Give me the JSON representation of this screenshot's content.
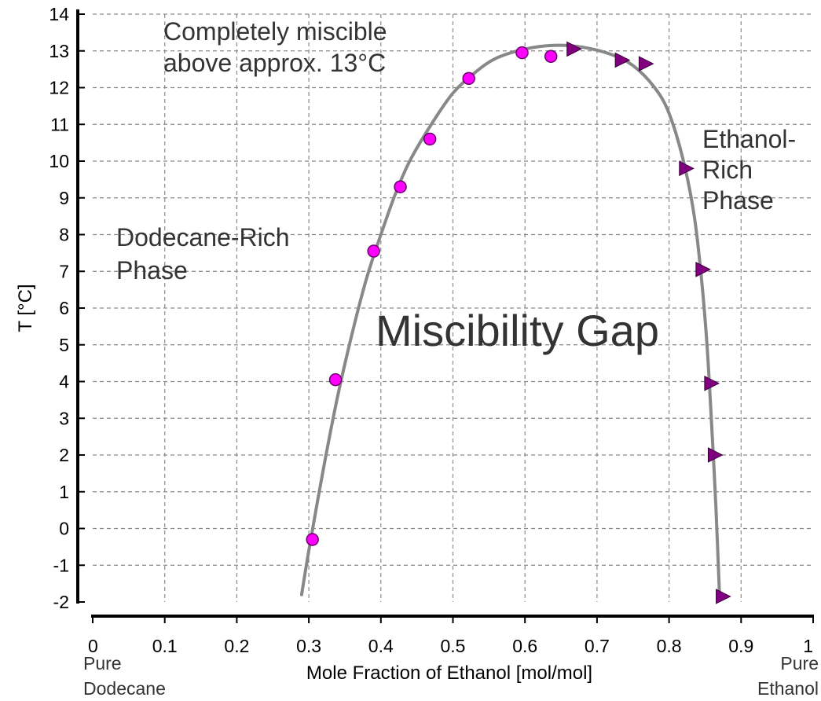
{
  "chart_data": {
    "type": "scatter",
    "title": "",
    "xlabel": "Mole Fraction of Ethanol [mol/mol]",
    "ylabel": "T [°C]",
    "xlim": [
      0,
      1
    ],
    "ylim": [
      -2,
      14
    ],
    "x_ticks": [
      0,
      0.1,
      0.2,
      0.3,
      0.4,
      0.5,
      0.6,
      0.7,
      0.8,
      0.9,
      1
    ],
    "x_tick_labels": [
      "0",
      "0.1",
      "0.2",
      "0.3",
      "0.4",
      "0.5",
      "0.6",
      "0.7",
      "0.8",
      "0.9",
      "1"
    ],
    "y_ticks": [
      -2,
      -1,
      0,
      1,
      2,
      3,
      4,
      5,
      6,
      7,
      8,
      9,
      10,
      11,
      12,
      13,
      14
    ],
    "y_tick_labels": [
      "-2",
      "-1",
      "0",
      "1",
      "2",
      "3",
      "4",
      "5",
      "6",
      "7",
      "8",
      "9",
      "10",
      "11",
      "12",
      "13",
      "14"
    ],
    "grid": true,
    "x_end_labels": {
      "left": [
        "Pure",
        "Dodecane"
      ],
      "right": [
        "Pure",
        "Ethanol"
      ]
    },
    "annotations": {
      "miscible": [
        "Completely miscible",
        "above approx. 13°C"
      ],
      "dodecane_phase": [
        "Dodecane-Rich",
        "Phase"
      ],
      "ethanol_phase": [
        "Ethanol-",
        "Rich",
        "Phase"
      ],
      "gap": "Miscibility Gap"
    },
    "colors": {
      "circle_fill": "#ff00ff",
      "triangle_fill": "#800080",
      "curve": "#888888"
    },
    "series": [
      {
        "marker": "circle",
        "x": [
          0.305,
          0.337,
          0.39,
          0.427,
          0.468,
          0.522,
          0.596,
          0.636
        ],
        "y": [
          -0.3,
          4.05,
          7.55,
          9.3,
          10.6,
          12.25,
          12.95,
          12.85
        ]
      },
      {
        "marker": "triangle",
        "x": [
          0.666,
          0.733,
          0.766,
          0.822,
          0.845,
          0.857,
          0.862,
          0.873
        ],
        "y": [
          13.05,
          12.75,
          12.65,
          9.8,
          7.05,
          3.95,
          2.0,
          -1.85
        ]
      },
      {
        "marker": "line",
        "x": [
          0.29,
          0.3,
          0.32,
          0.34,
          0.36,
          0.38,
          0.4,
          0.42,
          0.44,
          0.47,
          0.5,
          0.53,
          0.56,
          0.6,
          0.64,
          0.68,
          0.72,
          0.75,
          0.78,
          0.8,
          0.82,
          0.835,
          0.845,
          0.853,
          0.86,
          0.865,
          0.87
        ],
        "y": [
          -1.8,
          -0.6,
          1.6,
          3.6,
          5.3,
          6.8,
          8.0,
          9.1,
          10.0,
          11.0,
          11.85,
          12.4,
          12.8,
          13.05,
          13.15,
          13.1,
          12.9,
          12.6,
          12.0,
          11.3,
          10.0,
          8.5,
          6.8,
          4.9,
          2.5,
          0.6,
          -1.8
        ]
      }
    ]
  }
}
